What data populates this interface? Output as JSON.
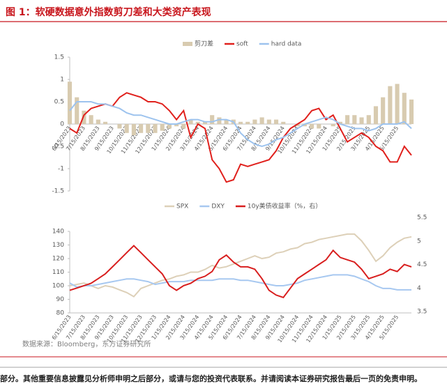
{
  "figure_title": "图 1：软硬数据意外指数剪刀差和大类资产表现",
  "source": "数据来源：Bloomberg，东方证券研究所",
  "disclaimer": "部分。其他重要信息披露见分析师申明之后部分，或请与您的投资代表联系。并请阅读本证券研究报告最后一页的免责申明。",
  "chart_data": [
    {
      "type": "combo",
      "categories": [
        "6/15/2023",
        null,
        "7/15/2023",
        null,
        "8/15/2023",
        null,
        "9/15/2023",
        null,
        "10/15/2023",
        null,
        "11/15/2023",
        null,
        "12/15/2023",
        null,
        "1/15/2024",
        null,
        "2/15/2024",
        null,
        "3/15/2024",
        null,
        "4/15/2024",
        null,
        "5/15/2024",
        null,
        "6/15/2024",
        null,
        "7/15/2024",
        null,
        "8/15/2024",
        null,
        "9/15/2024",
        null,
        "10/15/2024",
        null,
        "11/15/2024",
        null,
        "12/15/2024",
        null,
        "1/15/2025",
        null,
        "2/15/2025",
        null,
        "3/15/2025",
        null,
        "4/15/2025",
        null,
        "5/15/2025",
        null,
        null
      ],
      "series": [
        {
          "name": "剪刀差",
          "type": "bar",
          "color": "#d8cbb0",
          "values": [
            0.95,
            0.6,
            0.3,
            0.2,
            0.1,
            0.05,
            0.0,
            -0.1,
            -0.2,
            -0.25,
            -0.2,
            -0.2,
            -0.2,
            -0.15,
            -0.1,
            -0.05,
            -0.1,
            0.1,
            0.05,
            0.05,
            0.2,
            0.15,
            0.1,
            0.1,
            0.05,
            0.05,
            0.1,
            0.15,
            0.1,
            0.1,
            0.05,
            0.0,
            -0.05,
            -0.05,
            -0.1,
            -0.1,
            0.0,
            -0.05,
            0.05,
            0.2,
            0.2,
            0.15,
            0.2,
            0.4,
            0.6,
            0.85,
            0.9,
            0.7,
            0.55
          ]
        },
        {
          "name": "soft",
          "type": "line",
          "color": "#e0201c",
          "values": [
            -0.1,
            -0.2,
            0.2,
            0.35,
            0.4,
            0.45,
            0.4,
            0.6,
            0.7,
            0.65,
            0.6,
            0.5,
            0.5,
            0.45,
            0.3,
            0.1,
            0.3,
            -0.3,
            0.0,
            -0.1,
            -0.8,
            -1.0,
            -1.3,
            -1.25,
            -0.9,
            -0.95,
            -0.9,
            -0.85,
            -0.8,
            -0.6,
            -0.3,
            -0.1,
            0.0,
            0.1,
            0.3,
            0.35,
            0.1,
            0.2,
            -0.1,
            -0.4,
            -0.3,
            -0.2,
            -0.3,
            -0.5,
            -0.6,
            -0.85,
            -0.85,
            -0.5,
            -0.7
          ]
        },
        {
          "name": "hard data",
          "type": "line",
          "color": "#9dc3ee",
          "values": [
            0.3,
            0.5,
            0.5,
            0.5,
            0.45,
            0.45,
            0.4,
            0.35,
            0.25,
            0.2,
            0.2,
            0.15,
            0.1,
            0.05,
            0.0,
            0.0,
            0.05,
            0.1,
            0.1,
            0.05,
            0.05,
            0.1,
            0.1,
            0.05,
            -0.2,
            -0.35,
            -0.45,
            -0.5,
            -0.45,
            -0.35,
            -0.3,
            -0.2,
            -0.1,
            0.0,
            0.05,
            0.1,
            0.15,
            0.1,
            0.0,
            -0.05,
            -0.1,
            -0.1,
            -0.15,
            -0.1,
            0.0,
            0.0,
            0.0,
            0.05,
            -0.1
          ]
        }
      ],
      "ylim": [
        -1.5,
        1.5
      ],
      "yticks": [
        1.5,
        1,
        0.5,
        0,
        -0.5,
        -1,
        -1.5
      ],
      "grid": false
    },
    {
      "type": "line",
      "categories": [
        "6/15/2023",
        null,
        "7/15/2023",
        null,
        "8/15/2023",
        null,
        "9/15/2023",
        null,
        "10/15/2023",
        null,
        "11/15/2023",
        null,
        "12/15/2023",
        null,
        "1/15/2024",
        null,
        "2/15/2024",
        null,
        "3/15/2024",
        null,
        "4/15/2024",
        null,
        "5/15/2024",
        null,
        "6/15/2024",
        null,
        "7/15/2024",
        null,
        "8/15/2024",
        null,
        "9/15/2024",
        null,
        "10/15/2024",
        null,
        "11/15/2024",
        null,
        "12/15/2024",
        null,
        "1/15/2025",
        null,
        "2/15/2025",
        null,
        "3/15/2025",
        null,
        "4/15/2025",
        null,
        "5/15/2025",
        null,
        null
      ],
      "series": [
        {
          "name": "SPX",
          "color": "#ddd0b8",
          "values": [
            100,
            101,
            102,
            100,
            98,
            100,
            99,
            97,
            95,
            92,
            98,
            100,
            102,
            104,
            105,
            107,
            108,
            110,
            110,
            112,
            115,
            113,
            114,
            116,
            118,
            120,
            122,
            120,
            121,
            124,
            125,
            127,
            128,
            131,
            132,
            134,
            135,
            136,
            137,
            138,
            138,
            133,
            126,
            118,
            122,
            128,
            132,
            135,
            136
          ]
        },
        {
          "name": "DXY",
          "color": "#a7c8f0",
          "values": [
            102,
            99,
            100,
            100,
            101,
            102,
            103,
            104,
            105,
            105,
            104,
            103,
            101,
            102,
            103,
            103,
            103,
            104,
            104,
            104,
            104,
            105,
            105,
            105,
            104,
            104,
            103,
            102,
            101,
            100,
            100,
            101,
            102,
            104,
            105,
            106,
            107,
            108,
            108,
            108,
            107,
            105,
            103,
            100,
            98,
            98,
            97,
            97,
            97
          ]
        },
        {
          "name": "10y美债收益率（%，右）",
          "color": "#d81e1e",
          "axis": "y2",
          "values": [
            3.95,
            4.0,
            4.05,
            4.1,
            4.2,
            4.3,
            4.45,
            4.6,
            4.75,
            4.9,
            4.75,
            4.6,
            4.45,
            4.3,
            4.05,
            3.95,
            4.05,
            4.1,
            4.2,
            4.25,
            4.35,
            4.6,
            4.7,
            4.55,
            4.45,
            4.45,
            4.4,
            4.2,
            3.95,
            3.85,
            3.8,
            4.0,
            4.2,
            4.3,
            4.4,
            4.5,
            4.6,
            4.8,
            4.65,
            4.6,
            4.55,
            4.4,
            4.2,
            4.25,
            4.3,
            4.4,
            4.35,
            4.5,
            4.45
          ]
        }
      ],
      "ylim": [
        80,
        140
      ],
      "yticks": [
        140,
        130,
        120,
        110,
        100,
        90,
        80
      ],
      "y2lim": [
        3.5,
        5.5
      ],
      "y2ticks": [
        5.5,
        5,
        4.5,
        4,
        3.5
      ],
      "grid": false
    }
  ]
}
